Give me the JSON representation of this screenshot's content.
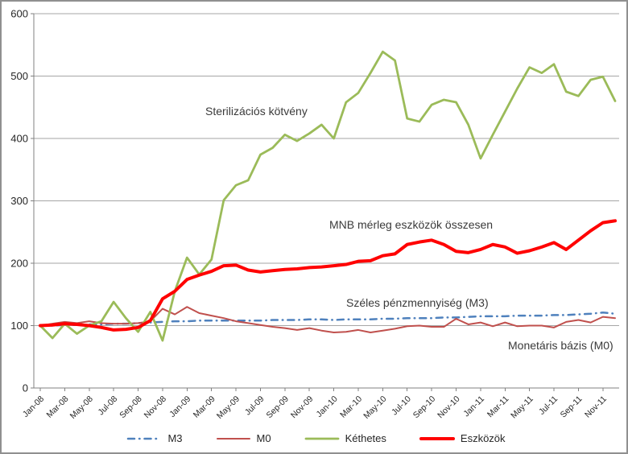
{
  "chart_data": {
    "type": "line",
    "title": "",
    "xlabel": "",
    "ylabel": "",
    "x_unit": "month",
    "x_start": "Jan-08",
    "x_end": "Dec-11",
    "x_tick_labels": [
      "Jan-08",
      "Mar-08",
      "May-08",
      "Jul-08",
      "Sep-08",
      "Nov-08",
      "Jan-09",
      "Mar-09",
      "May-09",
      "Jul-09",
      "Sep-09",
      "Nov-09",
      "Jan-10",
      "Mar-10",
      "May-10",
      "Jul-10",
      "Sep-10",
      "Nov-10",
      "Jan-11",
      "Mar-11",
      "May-11",
      "Jul-11",
      "Sep-11",
      "Nov-11"
    ],
    "points_per_tick": 2,
    "y_ticks": [
      0,
      100,
      200,
      300,
      400,
      500,
      600
    ],
    "ylim": [
      0,
      600
    ],
    "grid": true,
    "legend_position": "bottom",
    "gridline_color": "#a6a6a6",
    "axis_color": "#808080",
    "tick_text_color": "#262626",
    "series": [
      {
        "name": "M3",
        "color": "#4f81bd",
        "width": 2.5,
        "dash": "8 6 0.5 6",
        "values": [
          100,
          100,
          101,
          101,
          102,
          102,
          103,
          103,
          104,
          105,
          106,
          107,
          107,
          108,
          108,
          108,
          108,
          108,
          108,
          109,
          109,
          109,
          110,
          110,
          109,
          110,
          110,
          110,
          111,
          111,
          112,
          112,
          112,
          113,
          113,
          114,
          115,
          115,
          115,
          116,
          116,
          116,
          117,
          117,
          118,
          119,
          121,
          119
        ]
      },
      {
        "name": "M0",
        "color": "#c0504d",
        "width": 2,
        "dash": "",
        "values": [
          100,
          103,
          106,
          104,
          107,
          104,
          103,
          103,
          104,
          107,
          127,
          118,
          130,
          120,
          116,
          112,
          107,
          104,
          101,
          98,
          96,
          93,
          96,
          92,
          89,
          90,
          93,
          89,
          92,
          95,
          99,
          100,
          98,
          98,
          111,
          102,
          105,
          99,
          105,
          99,
          100,
          100,
          97,
          106,
          109,
          105,
          114,
          112
        ]
      },
      {
        "name": "Kéthetes",
        "color": "#9bbb59",
        "width": 2.8,
        "dash": "",
        "values": [
          100,
          80,
          103,
          87,
          100,
          107,
          138,
          112,
          90,
          122,
          76,
          155,
          209,
          182,
          206,
          301,
          325,
          333,
          374,
          385,
          406,
          396,
          408,
          422,
          400,
          458,
          473,
          505,
          539,
          525,
          432,
          427,
          454,
          462,
          458,
          422,
          368,
          406,
          443,
          480,
          514,
          505,
          519,
          475,
          468,
          494,
          499,
          460
        ]
      },
      {
        "name": "Eszközök",
        "color": "#ff0000",
        "width": 4,
        "dash": "",
        "values": [
          100,
          101,
          103,
          102,
          100,
          97,
          93,
          94,
          97,
          108,
          143,
          155,
          174,
          181,
          187,
          196,
          197,
          189,
          186,
          188,
          190,
          191,
          193,
          194,
          196,
          198,
          203,
          204,
          212,
          215,
          230,
          234,
          237,
          230,
          219,
          217,
          222,
          230,
          226,
          216,
          220,
          226,
          233,
          222,
          237,
          252,
          265,
          268
        ]
      }
    ],
    "annotations": [
      {
        "text": "Sterilizációs kötvény"
      },
      {
        "text": "MNB mérleg eszközök összesen"
      },
      {
        "text": "Széles pénzmennyiség (M3)"
      },
      {
        "text": "Monetáris bázis (M0)"
      }
    ]
  }
}
